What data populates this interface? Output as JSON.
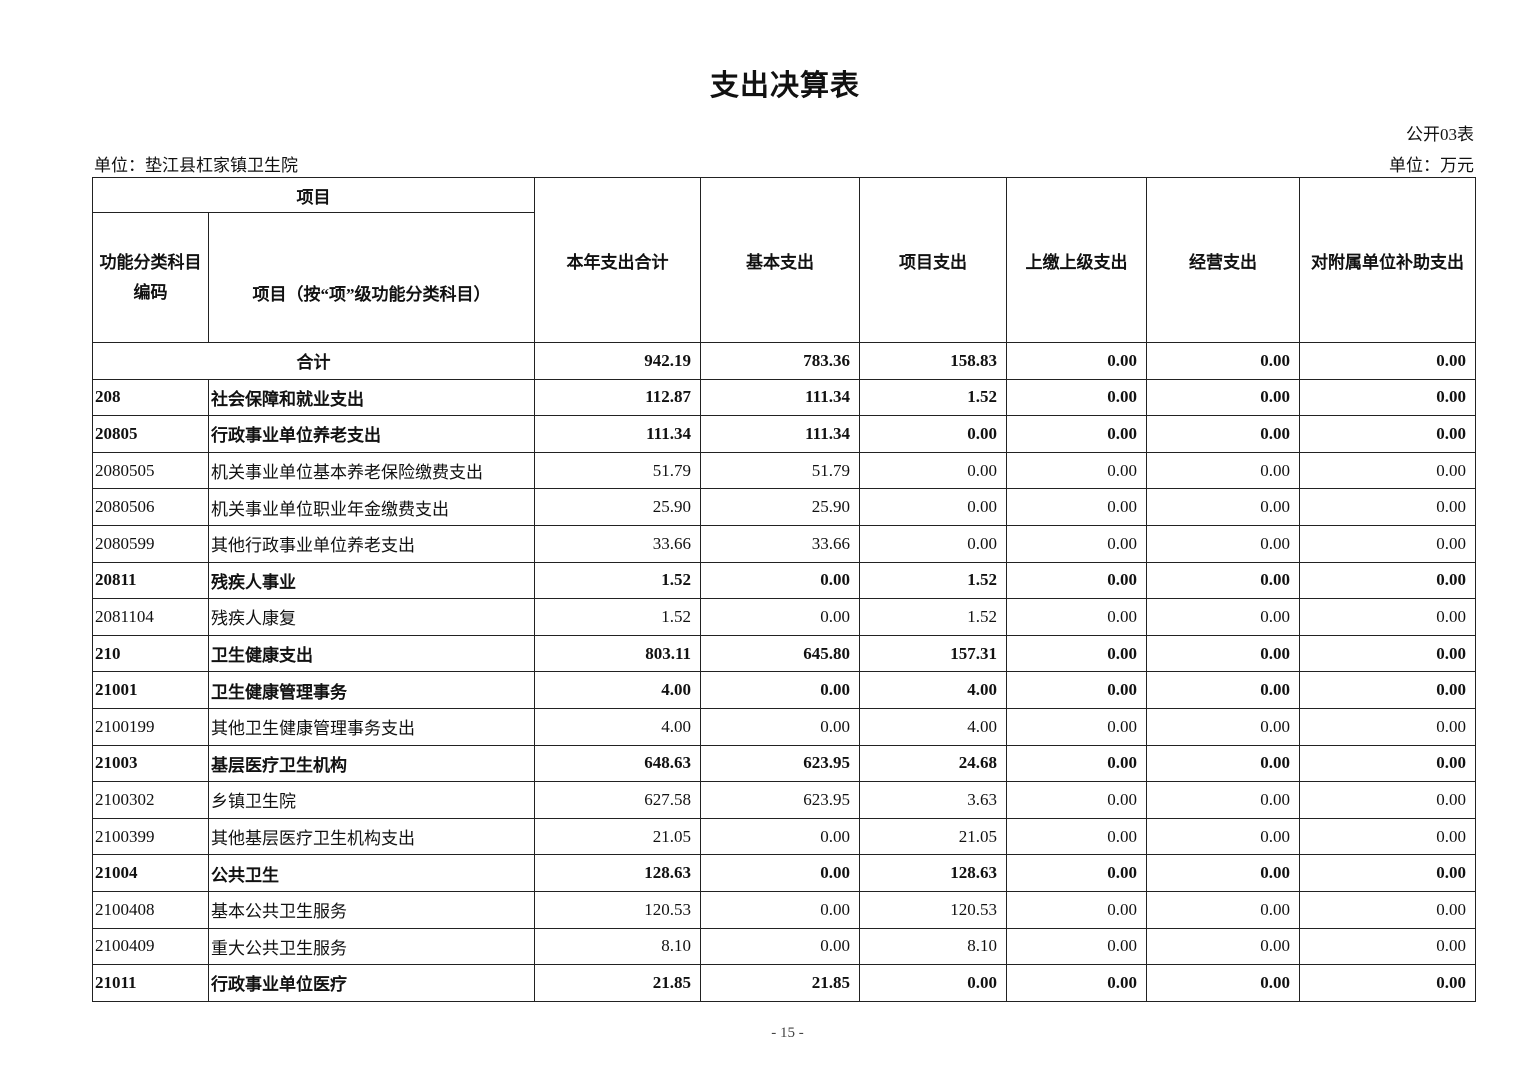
{
  "title": "支出决算表",
  "table_no": "公开03表",
  "unit_left": "单位：垫江县杠家镇卫生院",
  "unit_right": "单位：万元",
  "headers": {
    "project_group": "项目",
    "code": "功能分类科目编码",
    "name": "项目（按“项”级功能分类科目）",
    "total": "本年支出合计",
    "basic": "基本支出",
    "project": "项目支出",
    "upper": "上缴上级支出",
    "business": "经营支出",
    "subsidy": "对附属单位补助支出"
  },
  "total_row": {
    "label": "合计",
    "values": [
      "942.19",
      "783.36",
      "158.83",
      "0.00",
      "0.00",
      "0.00"
    ]
  },
  "rows": [
    {
      "code": "208",
      "name": "社会保障和就业支出",
      "bold": true,
      "values": [
        "112.87",
        "111.34",
        "1.52",
        "0.00",
        "0.00",
        "0.00"
      ]
    },
    {
      "code": "20805",
      "name": "行政事业单位养老支出",
      "bold": true,
      "values": [
        "111.34",
        "111.34",
        "0.00",
        "0.00",
        "0.00",
        "0.00"
      ]
    },
    {
      "code": "2080505",
      "name": "机关事业单位基本养老保险缴费支出",
      "bold": false,
      "values": [
        "51.79",
        "51.79",
        "0.00",
        "0.00",
        "0.00",
        "0.00"
      ]
    },
    {
      "code": "2080506",
      "name": "机关事业单位职业年金缴费支出",
      "bold": false,
      "values": [
        "25.90",
        "25.90",
        "0.00",
        "0.00",
        "0.00",
        "0.00"
      ]
    },
    {
      "code": "2080599",
      "name": "其他行政事业单位养老支出",
      "bold": false,
      "values": [
        "33.66",
        "33.66",
        "0.00",
        "0.00",
        "0.00",
        "0.00"
      ]
    },
    {
      "code": "20811",
      "name": "残疾人事业",
      "bold": true,
      "values": [
        "1.52",
        "0.00",
        "1.52",
        "0.00",
        "0.00",
        "0.00"
      ]
    },
    {
      "code": "2081104",
      "name": "残疾人康复",
      "bold": false,
      "values": [
        "1.52",
        "0.00",
        "1.52",
        "0.00",
        "0.00",
        "0.00"
      ]
    },
    {
      "code": "210",
      "name": "卫生健康支出",
      "bold": true,
      "values": [
        "803.11",
        "645.80",
        "157.31",
        "0.00",
        "0.00",
        "0.00"
      ]
    },
    {
      "code": "21001",
      "name": "卫生健康管理事务",
      "bold": true,
      "values": [
        "4.00",
        "0.00",
        "4.00",
        "0.00",
        "0.00",
        "0.00"
      ]
    },
    {
      "code": "2100199",
      "name": "其他卫生健康管理事务支出",
      "bold": false,
      "values": [
        "4.00",
        "0.00",
        "4.00",
        "0.00",
        "0.00",
        "0.00"
      ]
    },
    {
      "code": "21003",
      "name": "基层医疗卫生机构",
      "bold": true,
      "values": [
        "648.63",
        "623.95",
        "24.68",
        "0.00",
        "0.00",
        "0.00"
      ]
    },
    {
      "code": "2100302",
      "name": "乡镇卫生院",
      "bold": false,
      "values": [
        "627.58",
        "623.95",
        "3.63",
        "0.00",
        "0.00",
        "0.00"
      ]
    },
    {
      "code": "2100399",
      "name": "其他基层医疗卫生机构支出",
      "bold": false,
      "values": [
        "21.05",
        "0.00",
        "21.05",
        "0.00",
        "0.00",
        "0.00"
      ]
    },
    {
      "code": "21004",
      "name": "公共卫生",
      "bold": true,
      "values": [
        "128.63",
        "0.00",
        "128.63",
        "0.00",
        "0.00",
        "0.00"
      ]
    },
    {
      "code": "2100408",
      "name": "基本公共卫生服务",
      "bold": false,
      "values": [
        "120.53",
        "0.00",
        "120.53",
        "0.00",
        "0.00",
        "0.00"
      ]
    },
    {
      "code": "2100409",
      "name": "重大公共卫生服务",
      "bold": false,
      "values": [
        "8.10",
        "0.00",
        "8.10",
        "0.00",
        "0.00",
        "0.00"
      ]
    },
    {
      "code": "21011",
      "name": "行政事业单位医疗",
      "bold": true,
      "values": [
        "21.85",
        "21.85",
        "0.00",
        "0.00",
        "0.00",
        "0.00"
      ]
    }
  ],
  "footer": "- 15 -"
}
